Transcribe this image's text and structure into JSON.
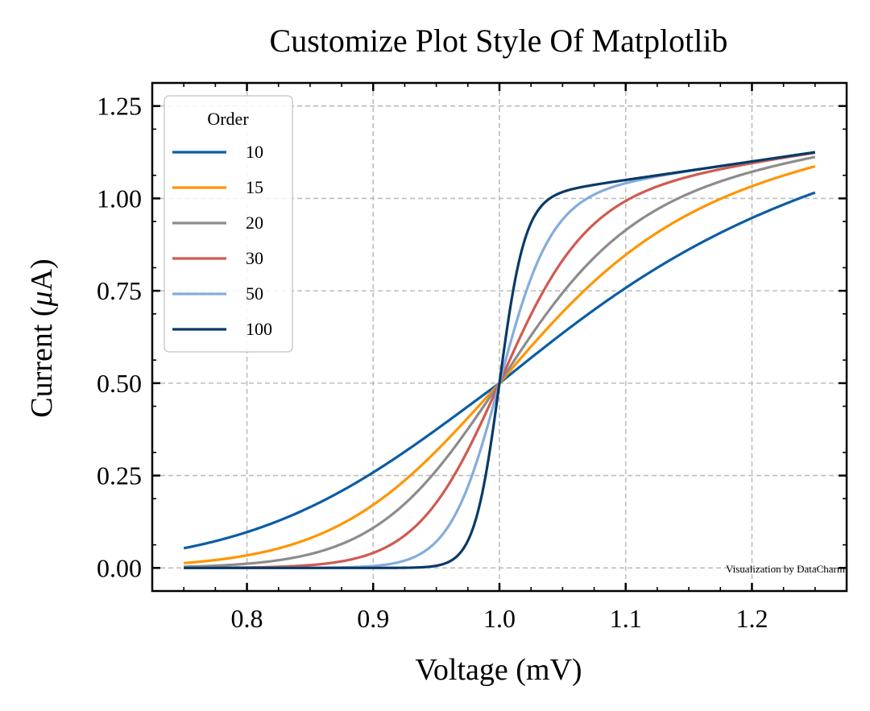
{
  "chart_data": {
    "type": "line",
    "title": "Customize Plot Style Of Matplotlib",
    "xlabel": "Voltage (mV)",
    "ylabel": "Current (",
    "ylabel_symbol": "μ",
    "ylabel_suffix": "A)",
    "xlim": [
      0.725,
      1.275
    ],
    "ylim": [
      -0.0625,
      1.3125
    ],
    "x_ticks": [
      0.8,
      0.9,
      1.0,
      1.1,
      1.2
    ],
    "x_tick_labels": [
      "0.8",
      "0.9",
      "1.0",
      "1.1",
      "1.2"
    ],
    "y_ticks": [
      0.0,
      0.25,
      0.5,
      0.75,
      1.0,
      1.25
    ],
    "y_tick_labels": [
      "0.00",
      "0.25",
      "0.50",
      "0.75",
      "1.00",
      "1.25"
    ],
    "x_minor_step": 0.025,
    "y_minor_step": 0.125,
    "grid": true,
    "legend": {
      "title": "Order",
      "placement": "upper-left"
    },
    "x_range": [
      0.75,
      1.25
    ],
    "series": [
      {
        "name": "10",
        "order": 10,
        "color": "#0C5DA5"
      },
      {
        "name": "15",
        "order": 15,
        "color": "#FF9500"
      },
      {
        "name": "20",
        "order": 20,
        "color": "#8C8C8C"
      },
      {
        "name": "30",
        "order": 30,
        "color": "#D05A50"
      },
      {
        "name": "50",
        "order": 50,
        "color": "#85ACDB"
      },
      {
        "name": "100",
        "order": 100,
        "color": "#0A3A66"
      }
    ],
    "annotation": "Visualization by DataCharm"
  }
}
